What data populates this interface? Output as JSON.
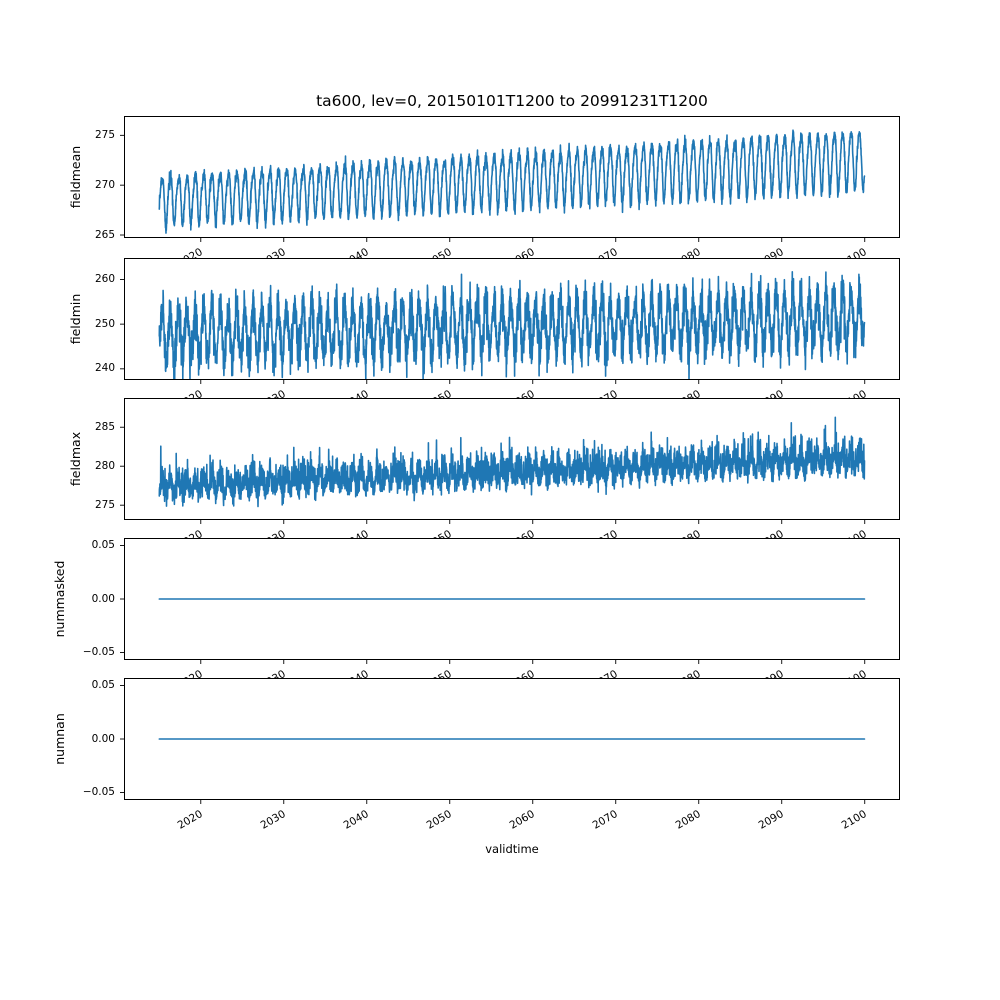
{
  "figure": {
    "title": "ta600, lev=0, 20150101T1200 to 20991231T1200",
    "background": "#ffffff",
    "text_color": "#000000",
    "line_color": "#1f77b4",
    "axis_color": "#000000",
    "x_axis": {
      "label": "validtime",
      "lim": [
        2010.75,
        2104.25
      ],
      "ticks": [
        2020,
        2030,
        2040,
        2050,
        2060,
        2070,
        2080,
        2090,
        2100
      ],
      "tick_labels": [
        "2020",
        "2030",
        "2040",
        "2050",
        "2060",
        "2070",
        "2080",
        "2090",
        "2100"
      ],
      "tick_rotation_deg": 30
    }
  },
  "chart_data": [
    {
      "type": "line",
      "name": "fieldmean",
      "ylabel": "fieldmean",
      "x_start": 2015.0,
      "x_end": 2099.97,
      "ylim": [
        264.7,
        276.94
      ],
      "yticks": [
        265,
        270,
        275
      ],
      "ytick_labels": [
        "265",
        "270",
        "275"
      ],
      "description": "Annual sinusoidal cycle with slow upward trend and small noise",
      "model": {
        "kind": "seasonal",
        "mean_start": 268.6,
        "mean_end": 272.7,
        "amp_start": 2.35,
        "amp_end": 2.9,
        "harmonic2_amp": 0.45,
        "noise_sd": 0.3,
        "period_years": 1,
        "seed": 7
      },
      "observed": {
        "start_min": 265.3,
        "start_max": 271.6,
        "end_min": 269.5,
        "end_max": 276.3
      }
    },
    {
      "type": "line",
      "name": "fieldmin",
      "ylabel": "fieldmin",
      "x_start": 2015.0,
      "x_end": 2099.97,
      "ylim": [
        237.5,
        264.8
      ],
      "yticks": [
        240,
        250,
        260
      ],
      "ytick_labels": [
        "240",
        "250",
        "260"
      ],
      "description": "Noisy annual cycle, roughly 238-256 rising to 240-263",
      "model": {
        "kind": "seasonal",
        "mean_start": 247.6,
        "mean_end": 251.2,
        "amp_start": 5.6,
        "amp_end": 5.6,
        "harmonic2_amp": 0,
        "noise_sd": 2.3,
        "period_years": 1,
        "seed": 13
      },
      "observed": {
        "start_min": 238.4,
        "start_max": 256.0,
        "end_min": 240.5,
        "end_max": 263.5
      }
    },
    {
      "type": "line",
      "name": "fieldmax",
      "ylabel": "fieldmax",
      "x_start": 2015.0,
      "x_end": 2099.97,
      "ylim": [
        273.1,
        288.75
      ],
      "yticks": [
        275,
        280,
        285
      ],
      "ytick_labels": [
        "275",
        "280",
        "285"
      ],
      "description": "Dense noisy band with upward spikes, trending from ~275-283 to ~278-288",
      "model": {
        "kind": "seasonal_skew",
        "mean_start": 277.0,
        "mean_end": 280.6,
        "amp_start": 0.9,
        "amp_end": 0.9,
        "skew_sd": 1.5,
        "noise_sd": 0.5,
        "offset": -0.7,
        "period_years": 1,
        "seed": 21
      },
      "observed": {
        "start_min": 274.6,
        "start_max": 283.0,
        "end_min": 277.3,
        "end_max": 288.0
      }
    },
    {
      "type": "line",
      "name": "nummasked",
      "ylabel": "nummasked",
      "x_start": 2015.0,
      "x_end": 2099.97,
      "ylim": [
        -0.057,
        0.057
      ],
      "yticks": [
        -0.05,
        0.0,
        0.05
      ],
      "ytick_labels": [
        "−0.05",
        "0.00",
        "0.05"
      ],
      "description": "Constant zero line across the full time range",
      "model": {
        "kind": "constant",
        "value": 0
      },
      "observed": {
        "constant_value": 0
      }
    },
    {
      "type": "line",
      "name": "numnan",
      "ylabel": "numnan",
      "x_start": 2015.0,
      "x_end": 2099.97,
      "ylim": [
        -0.057,
        0.057
      ],
      "yticks": [
        -0.05,
        0.0,
        0.05
      ],
      "ytick_labels": [
        "−0.05",
        "0.00",
        "0.05"
      ],
      "description": "Constant zero line across the full time range",
      "model": {
        "kind": "constant",
        "value": 0
      },
      "observed": {
        "constant_value": 0
      }
    }
  ]
}
